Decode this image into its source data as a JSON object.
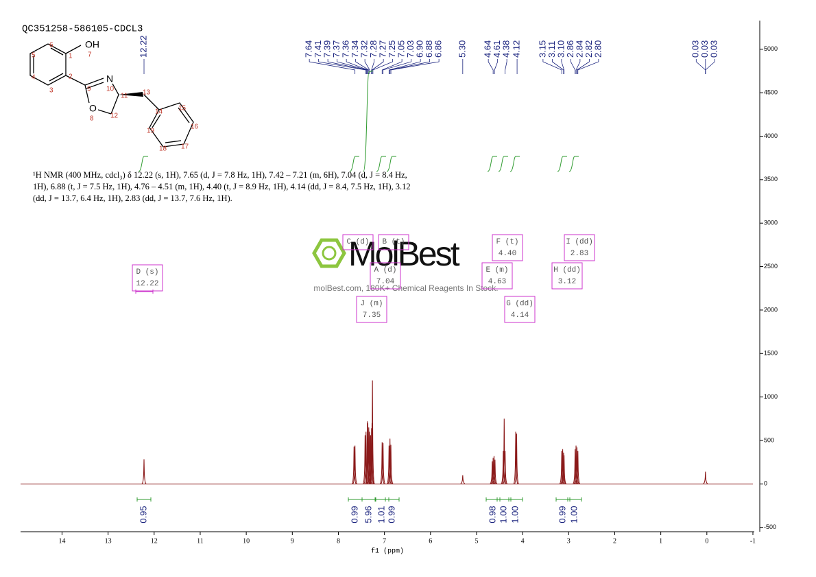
{
  "header": {
    "title": "QC351258-586105-CDCL3"
  },
  "structure": {
    "atoms": [
      "OH",
      "7",
      "1",
      "2",
      "3",
      "4",
      "5",
      "6",
      "9",
      "N",
      "10",
      "11",
      "O",
      "8",
      "12",
      "13",
      "14",
      "15",
      "16",
      "17",
      "18",
      "19"
    ]
  },
  "description": "¹H NMR (400 MHz, cdcl₃) δ 12.22 (s, 1H), 7.65 (d, J = 7.8 Hz, 1H), 7.42 – 7.21 (m, 6H), 7.04 (d, J = 8.4 Hz, 1H), 6.88 (t, J = 7.5 Hz, 1H), 4.76 – 4.51 (m, 1H), 4.40 (t, J = 8.9 Hz, 1H), 4.14 (dd, J = 8.4, 7.5 Hz, 1H), 3.12 (dd, J = 13.7, 6.4 Hz, 1H), 2.83 (dd, J = 13.7, 7.6 Hz, 1H).",
  "watermark": {
    "brand": "MolBest",
    "tagline": "molBest.com, 180K+ Chemical Reagents In Stock."
  },
  "chart_data": {
    "type": "nmr",
    "x_label": "f1 (ppm)",
    "xlim": [
      14.9,
      -1.03
    ],
    "xticks": [
      14,
      13,
      12,
      11,
      10,
      9,
      8,
      7,
      6,
      5,
      4,
      3,
      2,
      1,
      0,
      -1
    ],
    "ylim": [
      -550,
      5330
    ],
    "yticks": [
      -500,
      0,
      500,
      1000,
      1500,
      2000,
      2500,
      3000,
      3500,
      4000,
      4500,
      5000
    ],
    "color": "#8b1a1a",
    "x": [
      12.22,
      7.66,
      7.64,
      7.42,
      7.4,
      7.37,
      7.36,
      7.34,
      7.32,
      7.3,
      7.28,
      7.27,
      7.26,
      7.05,
      7.03,
      6.9,
      6.88,
      6.86,
      5.3,
      4.66,
      4.64,
      4.62,
      4.6,
      4.42,
      4.4,
      4.38,
      4.15,
      4.13,
      3.15,
      3.13,
      3.11,
      3.1,
      2.86,
      2.84,
      2.82,
      2.8,
      0.03
    ],
    "values": [
      284,
      430,
      440,
      560,
      600,
      720,
      700,
      650,
      600,
      560,
      640,
      700,
      1190,
      480,
      470,
      440,
      520,
      450,
      100,
      260,
      300,
      320,
      280,
      380,
      750,
      380,
      600,
      580,
      380,
      400,
      360,
      330,
      400,
      440,
      420,
      380,
      140
    ],
    "peak_labels": [
      {
        "value": 12.22,
        "label": "12.22"
      },
      {
        "value": 7.64,
        "label": "7.64"
      },
      {
        "value": 7.41,
        "label": "7.41"
      },
      {
        "value": 7.39,
        "label": "7.39"
      },
      {
        "value": 7.37,
        "label": "7.37"
      },
      {
        "value": 7.36,
        "label": "7.36"
      },
      {
        "value": 7.34,
        "label": "7.34"
      },
      {
        "value": 7.32,
        "label": "7.32"
      },
      {
        "value": 7.28,
        "label": "7.28"
      },
      {
        "value": 7.27,
        "label": "7.27"
      },
      {
        "value": 7.25,
        "label": "7.25"
      },
      {
        "value": 7.05,
        "label": "7.05"
      },
      {
        "value": 7.03,
        "label": "7.03"
      },
      {
        "value": 6.9,
        "label": "6.90"
      },
      {
        "value": 6.88,
        "label": "6.88"
      },
      {
        "value": 6.86,
        "label": "6.86"
      },
      {
        "value": 5.3,
        "label": "5.30"
      },
      {
        "value": 4.64,
        "label": "4.64"
      },
      {
        "value": 4.61,
        "label": "4.61"
      },
      {
        "value": 4.38,
        "label": "4.38"
      },
      {
        "value": 4.12,
        "label": "4.12"
      },
      {
        "value": 3.15,
        "label": "3.15"
      },
      {
        "value": 3.11,
        "label": "3.11"
      },
      {
        "value": 3.1,
        "label": "3.10"
      },
      {
        "value": 2.86,
        "label": "2.86"
      },
      {
        "value": 2.84,
        "label": "2.84"
      },
      {
        "value": 2.82,
        "label": "2.82"
      },
      {
        "value": 2.8,
        "label": "2.80"
      },
      {
        "value": 0.03,
        "label": "0.03"
      },
      {
        "value": 0.03,
        "label": "0.03"
      },
      {
        "value": 0.03,
        "label": "0.03"
      }
    ],
    "integrals": [
      "0.95",
      "0.99",
      "5.96",
      "1.01",
      "0.99",
      "0.98",
      "1.00",
      "1.00",
      "0.99",
      "1.00"
    ],
    "multiplets": [
      {
        "name": "D (s)",
        "shift": "12.22"
      },
      {
        "name": "C (d)"
      },
      {
        "name": "B (t)"
      },
      {
        "name": "A (d)",
        "shift": "7.04"
      },
      {
        "name": "J (m)",
        "shift": "7.35"
      },
      {
        "name": "F (t)",
        "shift": "4.40"
      },
      {
        "name": "E (m)",
        "shift": "4.63"
      },
      {
        "name": "G (dd)",
        "shift": "4.14"
      },
      {
        "name": "I (dd)",
        "shift": "2.83"
      },
      {
        "name": "H (dd)",
        "shift": "3.12"
      }
    ]
  }
}
